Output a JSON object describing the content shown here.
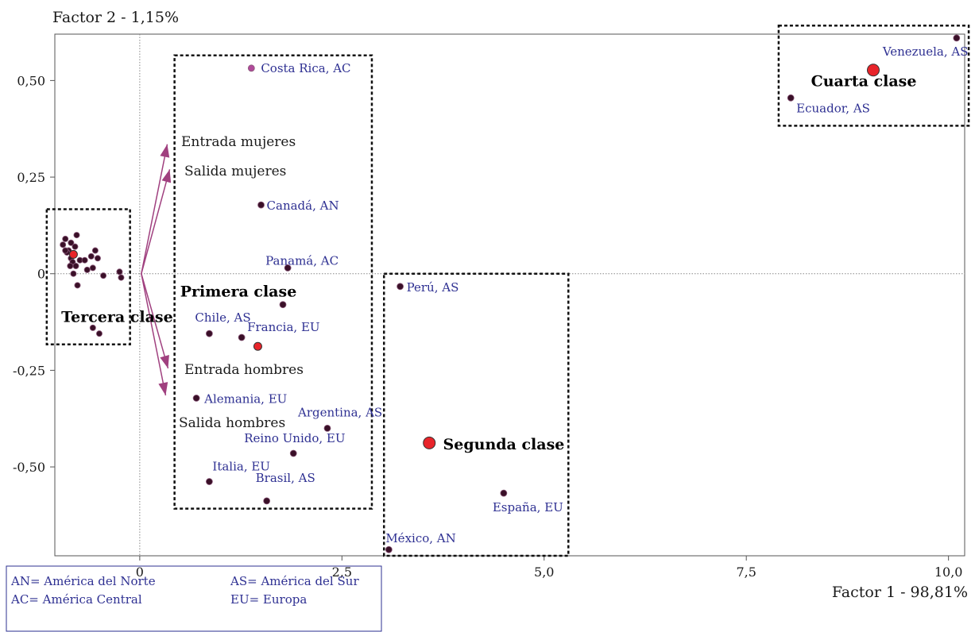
{
  "chart_data": {
    "type": "scatter",
    "title": "",
    "xlabel": "Factor 1 - 98,81%",
    "ylabel": "Factor 2 - 1,15%",
    "xlim": [
      -1.05,
      10.2
    ],
    "ylim": [
      -0.73,
      0.62
    ],
    "x_ticks": [
      {
        "v": 0,
        "label": "0"
      },
      {
        "v": 2.5,
        "label": "2,5"
      },
      {
        "v": 5.0,
        "label": "5,0"
      },
      {
        "v": 7.5,
        "label": "7,5"
      },
      {
        "v": 10.0,
        "label": "10,0"
      }
    ],
    "y_ticks": [
      {
        "v": 0.5,
        "label": "0,50"
      },
      {
        "v": 0.25,
        "label": "0,25"
      },
      {
        "v": 0,
        "label": "0"
      },
      {
        "v": -0.25,
        "label": "-0,25"
      },
      {
        "v": -0.5,
        "label": "-0,50"
      }
    ],
    "grid": false,
    "colors": {
      "point": "#3a1028",
      "point_edge": "#8a5a7a",
      "centroid": "#e8242a",
      "arrow": "#a0407f",
      "label": "#2e3092",
      "costa_rica": "#b04a9a"
    },
    "labeled_points": [
      {
        "label": "Venezuela, AS",
        "x": 10.1,
        "y": 0.61
      },
      {
        "label": "Ecuador, AS",
        "x": 8.05,
        "y": 0.455
      },
      {
        "label": "Costa Rica, AC",
        "x": 1.38,
        "y": 0.532
      },
      {
        "label": "Canadá, AN",
        "x": 1.5,
        "y": 0.178
      },
      {
        "label": "Panamá, AC",
        "x": 1.83,
        "y": 0.015
      },
      {
        "label": "",
        "x": 1.77,
        "y": -0.08
      },
      {
        "label": "Chile, AS",
        "x": 0.86,
        "y": -0.155
      },
      {
        "label": "Francia, EU",
        "x": 1.26,
        "y": -0.165
      },
      {
        "label": "Alemania, EU",
        "x": 0.7,
        "y": -0.322
      },
      {
        "label": "Argentina, AS",
        "x": 2.32,
        "y": -0.4
      },
      {
        "label": "Reino Unido, EU",
        "x": 1.9,
        "y": -0.465
      },
      {
        "label": "Italia, EU",
        "x": 0.86,
        "y": -0.538
      },
      {
        "label": "Brasil, AS",
        "x": 1.57,
        "y": -0.588
      },
      {
        "label": "Perú, AS",
        "x": 3.22,
        "y": -0.033
      },
      {
        "label": "España, EU",
        "x": 4.5,
        "y": -0.568
      },
      {
        "label": "México, AN",
        "x": 3.08,
        "y": -0.714
      }
    ],
    "cluster_points": [
      [
        -0.95,
        0.075
      ],
      [
        -0.92,
        0.09
      ],
      [
        -0.88,
        0.06
      ],
      [
        -0.85,
        0.08
      ],
      [
        -0.8,
        0.07
      ],
      [
        -0.78,
        0.1
      ],
      [
        -0.9,
        0.055
      ],
      [
        -0.85,
        0.04
      ],
      [
        -0.83,
        0.03
      ],
      [
        -0.79,
        0.02
      ],
      [
        -0.86,
        0.02
      ],
      [
        -0.74,
        0.035
      ],
      [
        -0.68,
        0.035
      ],
      [
        -0.65,
        0.01
      ],
      [
        -0.6,
        0.045
      ],
      [
        -0.58,
        0.015
      ],
      [
        -0.55,
        0.06
      ],
      [
        -0.52,
        0.04
      ],
      [
        -0.45,
        -0.005
      ],
      [
        -0.25,
        0.005
      ],
      [
        -0.23,
        -0.01
      ],
      [
        -0.82,
        0.0
      ],
      [
        -0.77,
        -0.03
      ],
      [
        -0.58,
        -0.14
      ],
      [
        -0.5,
        -0.155
      ],
      [
        -0.92,
        0.06
      ]
    ],
    "centroids": [
      {
        "name": "Primera clase",
        "x": 1.46,
        "y": -0.188
      },
      {
        "name": "Segunda clase",
        "x": 3.58,
        "y": -0.438
      },
      {
        "name": "Tercera clase",
        "x": -0.82,
        "y": 0.05
      },
      {
        "name": "Cuarta clase",
        "x": 9.07,
        "y": 0.527
      }
    ],
    "class_labels": [
      {
        "label": "Primera clase",
        "x": 0.5,
        "y": -0.045
      },
      {
        "label": "Segunda clase",
        "x": 3.75,
        "y": -0.44
      },
      {
        "label": "Tercera clase",
        "x": -0.97,
        "y": -0.11
      },
      {
        "label": "Cuarta clase",
        "x": 8.3,
        "y": 0.5
      }
    ],
    "class_boxes": [
      {
        "name": "Primera clase",
        "x0": 0.43,
        "x1": 2.87,
        "y0": 0.565,
        "y1": -0.608
      },
      {
        "name": "Segunda clase",
        "x0": 3.02,
        "x1": 5.3,
        "y0": 0.0,
        "y1": -0.73
      },
      {
        "name": "Tercera clase",
        "x0": -1.15,
        "x1": -0.12,
        "y0": 0.167,
        "y1": -0.183
      },
      {
        "name": "Cuarta clase",
        "x0": 7.9,
        "x1": 10.25,
        "y0": 0.642,
        "y1": 0.383
      }
    ],
    "variables": [
      {
        "label": "Entrada mujeres",
        "x": 0.34,
        "y": 0.335
      },
      {
        "label": "Salida mujeres",
        "x": 0.37,
        "y": 0.27
      },
      {
        "label": "Entrada hombres",
        "x": 0.35,
        "y": -0.245
      },
      {
        "label": "Salida hombres",
        "x": 0.32,
        "y": -0.315
      }
    ],
    "legend": [
      [
        "AN= América del Norte",
        "AS= América del Sur"
      ],
      [
        "AC= América Central",
        "EU= Europa"
      ]
    ]
  }
}
